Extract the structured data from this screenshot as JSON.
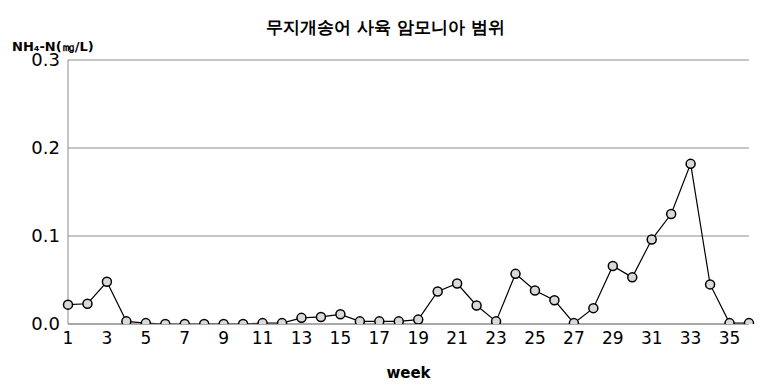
{
  "chart_data": {
    "type": "line",
    "title": "무지개송어 사육 암모니아 범위",
    "y_label": "NH₄-N(㎎/L)",
    "x_label": "week",
    "categories": [
      "1",
      null,
      "3",
      null,
      "5",
      null,
      "7",
      null,
      "9",
      null,
      "11",
      null,
      "13",
      null,
      "15",
      null,
      "17",
      null,
      "19",
      null,
      "21",
      null,
      "23",
      null,
      "25",
      null,
      "27",
      null,
      "29",
      null,
      "31",
      null,
      "33",
      null,
      "35",
      null
    ],
    "values": [
      0.022,
      0.023,
      0.048,
      0.003,
      0.001,
      0.0,
      0.0,
      0.0,
      0.0,
      0.0,
      0.001,
      0.001,
      0.007,
      0.008,
      0.011,
      0.003,
      0.003,
      0.003,
      0.005,
      0.037,
      0.046,
      0.021,
      0.003,
      0.057,
      0.038,
      0.027,
      0.001,
      0.018,
      0.066,
      0.053,
      0.096,
      0.125,
      0.182,
      0.045,
      0.001,
      0.001
    ],
    "color": "#000000",
    "marker": "circle",
    "ylim": [
      0,
      0.3
    ],
    "yticks": [
      {
        "value": 0,
        "label": "0.0"
      },
      0.1,
      0.2,
      0.3
    ],
    "grid": true
  }
}
